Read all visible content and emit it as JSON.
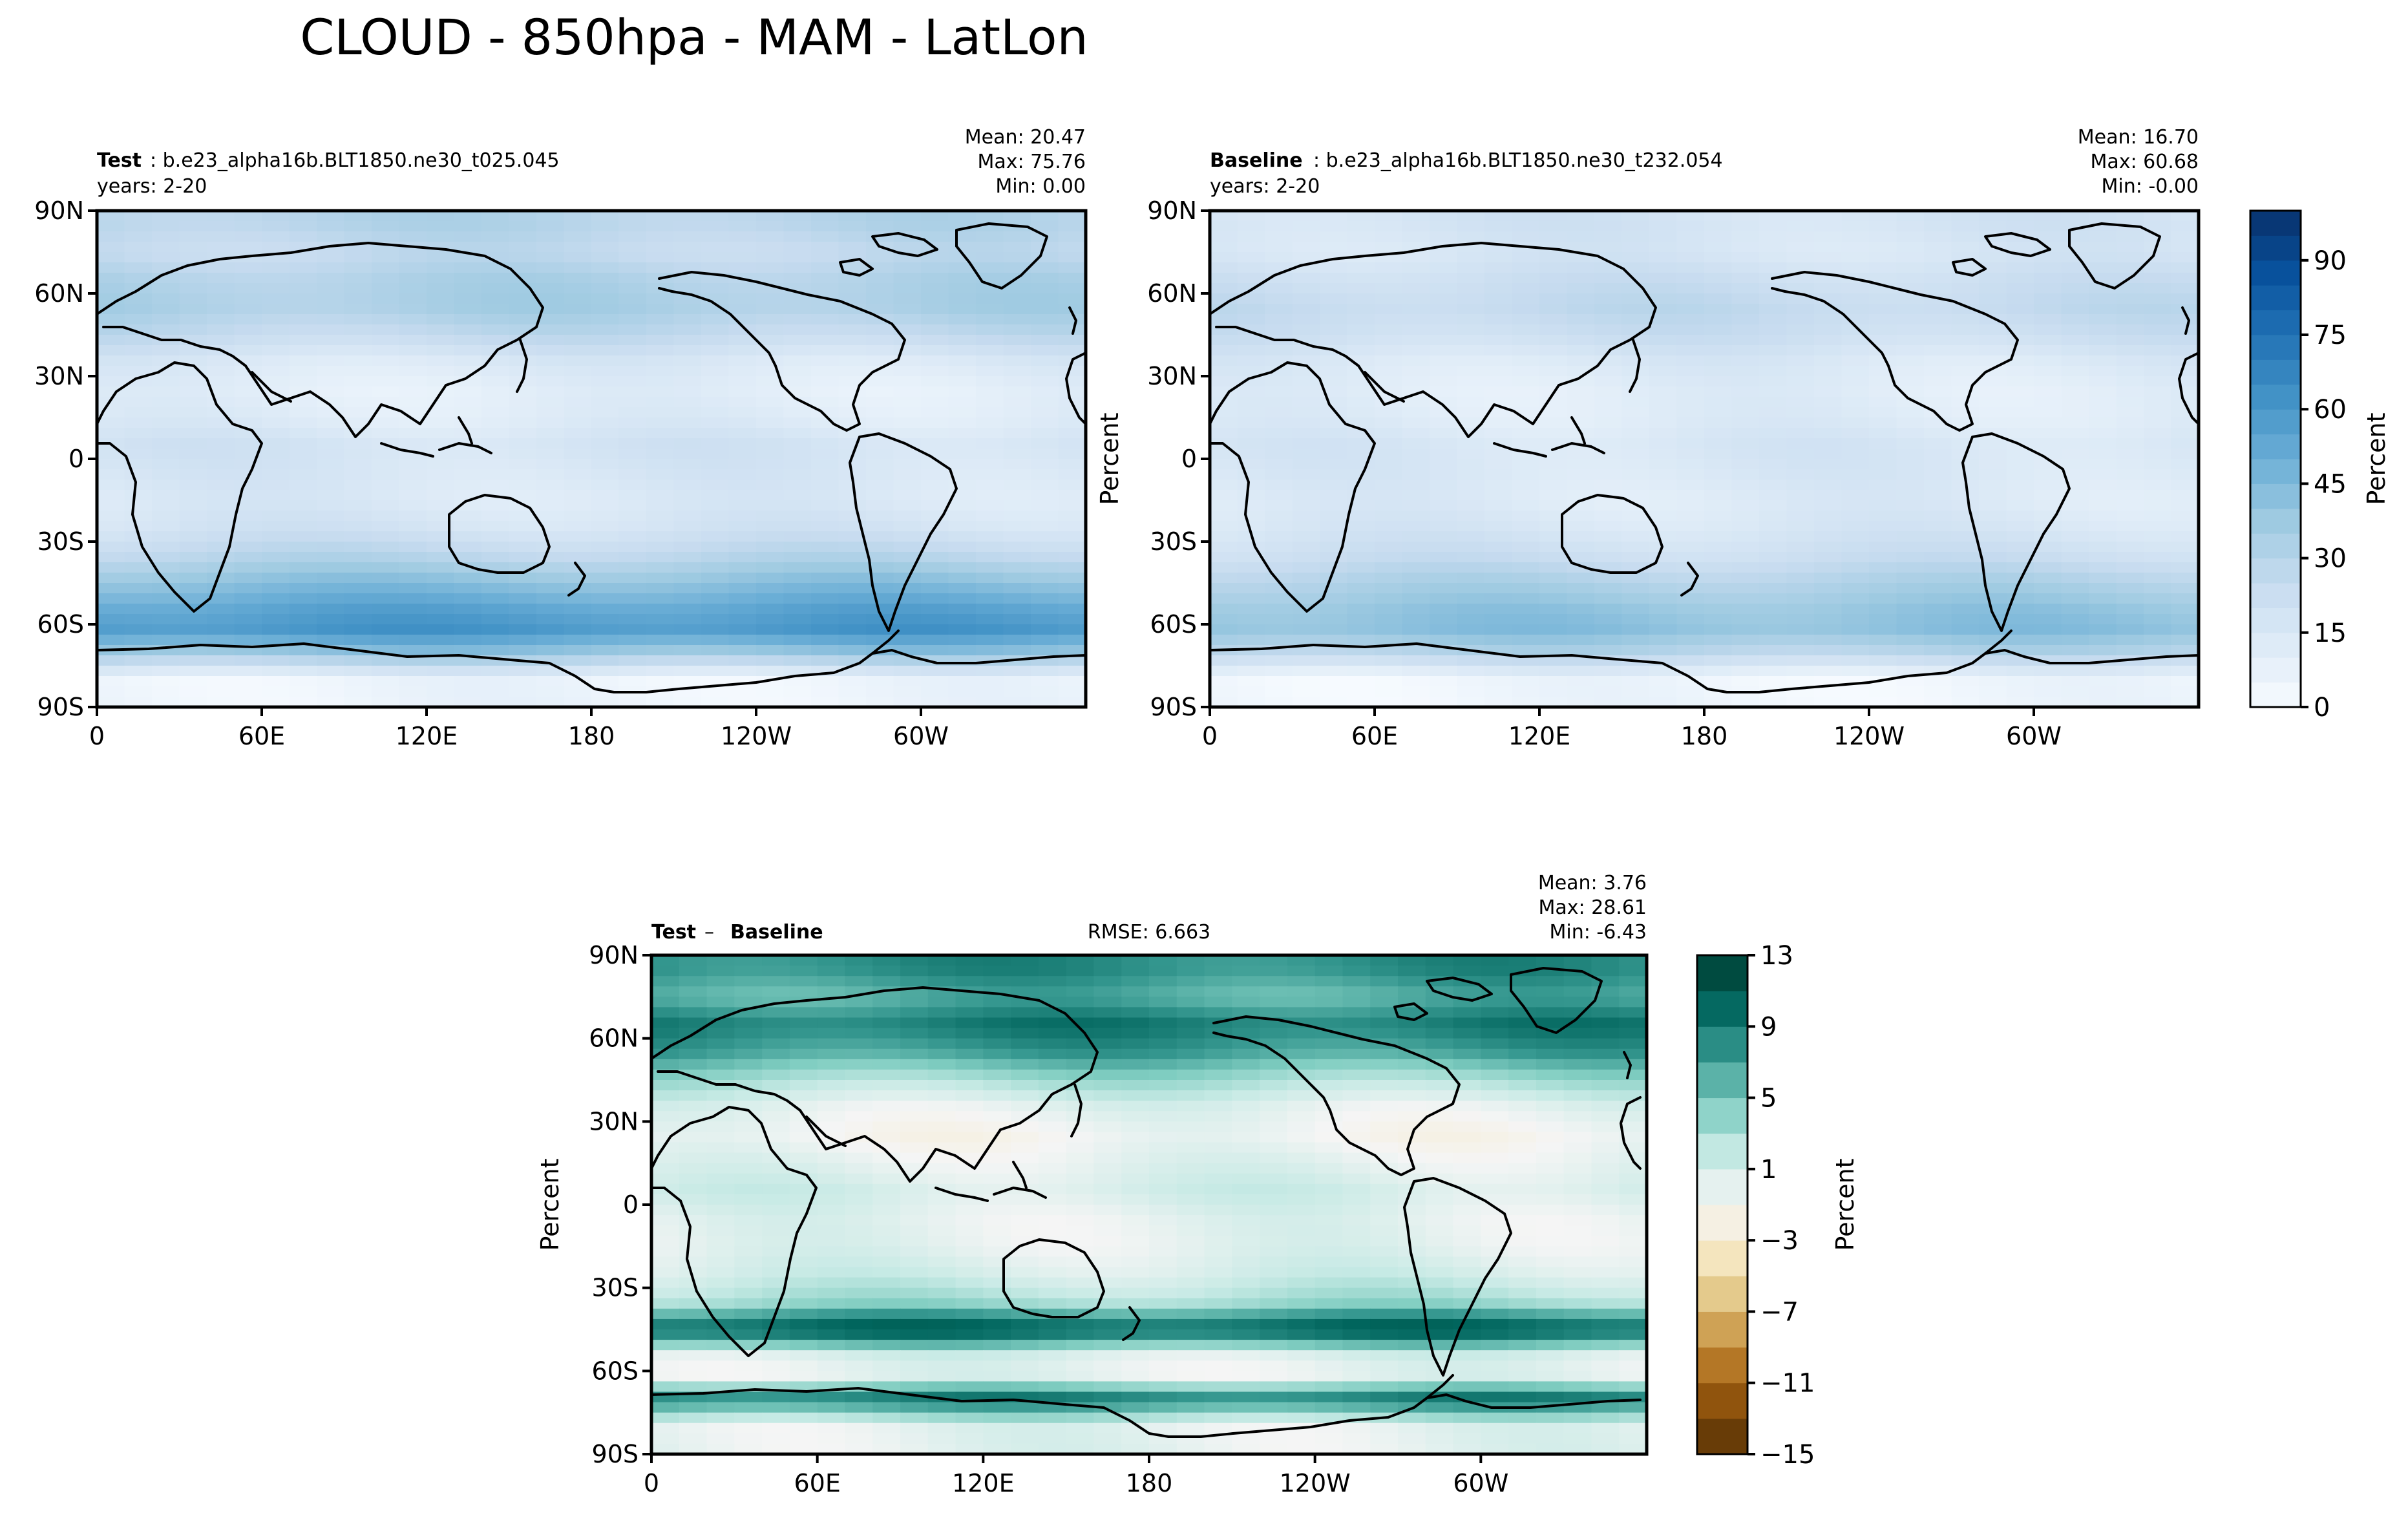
{
  "figure": {
    "title": "CLOUD - 850hpa - MAM - LatLon"
  },
  "chart_data": [
    {
      "type": "heatmap",
      "panel": "test",
      "label_bold": "Test",
      "label_rest": ": b.e23_alpha16b.BLT1850.ne30_t025.045",
      "years": "years: 2-20",
      "stats": {
        "mean": "Mean: 20.47",
        "max": "Max: 75.76",
        "min": "Min:  0.00"
      },
      "ylabel": "",
      "xticks": [
        "0",
        "60E",
        "120E",
        "180",
        "120W",
        "60W"
      ],
      "yticks": [
        "90N",
        "60N",
        "30N",
        "0",
        "30S",
        "60S",
        "90S"
      ],
      "xlim": [
        0,
        360
      ],
      "ylim": [
        -90,
        90
      ],
      "colormap": "Blues",
      "value_range": [
        0,
        100
      ],
      "zonal_profile": [
        {
          "lat": 85,
          "value": 30
        },
        {
          "lat": 75,
          "value": 25
        },
        {
          "lat": 65,
          "value": 32
        },
        {
          "lat": 55,
          "value": 34
        },
        {
          "lat": 45,
          "value": 26
        },
        {
          "lat": 35,
          "value": 14
        },
        {
          "lat": 25,
          "value": 10
        },
        {
          "lat": 15,
          "value": 12
        },
        {
          "lat": 5,
          "value": 18
        },
        {
          "lat": -5,
          "value": 16
        },
        {
          "lat": -15,
          "value": 14
        },
        {
          "lat": -25,
          "value": 18
        },
        {
          "lat": -35,
          "value": 28
        },
        {
          "lat": -45,
          "value": 42
        },
        {
          "lat": -55,
          "value": 55
        },
        {
          "lat": -62,
          "value": 60
        },
        {
          "lat": -70,
          "value": 40
        },
        {
          "lat": -80,
          "value": 5
        }
      ]
    },
    {
      "type": "heatmap",
      "panel": "baseline",
      "label_bold": "Baseline",
      "label_rest": ": b.e23_alpha16b.BLT1850.ne30_t232.054",
      "years": "years: 2-20",
      "stats": {
        "mean": "Mean: 16.70",
        "max": "Max: 60.68",
        "min": "Min: -0.00"
      },
      "ylabel": "Percent",
      "xticks": [
        "0",
        "60E",
        "120E",
        "180",
        "120W",
        "60W"
      ],
      "yticks": [
        "90N",
        "60N",
        "30N",
        "0",
        "30S",
        "60S",
        "90S"
      ],
      "xlim": [
        0,
        360
      ],
      "ylim": [
        -90,
        90
      ],
      "colormap": "Blues",
      "value_range": [
        0,
        100
      ],
      "zonal_profile": [
        {
          "lat": 85,
          "value": 18
        },
        {
          "lat": 75,
          "value": 16
        },
        {
          "lat": 65,
          "value": 22
        },
        {
          "lat": 55,
          "value": 26
        },
        {
          "lat": 45,
          "value": 22
        },
        {
          "lat": 35,
          "value": 14
        },
        {
          "lat": 25,
          "value": 11
        },
        {
          "lat": 15,
          "value": 12
        },
        {
          "lat": 5,
          "value": 16
        },
        {
          "lat": -5,
          "value": 15
        },
        {
          "lat": -15,
          "value": 13
        },
        {
          "lat": -25,
          "value": 16
        },
        {
          "lat": -35,
          "value": 22
        },
        {
          "lat": -45,
          "value": 32
        },
        {
          "lat": -55,
          "value": 40
        },
        {
          "lat": -62,
          "value": 42
        },
        {
          "lat": -70,
          "value": 30
        },
        {
          "lat": -80,
          "value": 4
        }
      ],
      "colorbar": {
        "label": "Percent",
        "ticks": [
          "0",
          "15",
          "30",
          "45",
          "60",
          "75",
          "90"
        ],
        "tick_values": [
          0,
          15,
          30,
          45,
          60,
          75,
          90
        ],
        "range": [
          0,
          100
        ],
        "levels": 20
      }
    },
    {
      "type": "heatmap",
      "panel": "diff",
      "label_bold": "Test",
      "label_op": " – ",
      "label_bold2": "Baseline",
      "rmse": "RMSE: 6.663",
      "stats": {
        "mean": "Mean:  3.76",
        "max": "Max: 28.61",
        "min": "Min: -6.43"
      },
      "ylabel": "Percent",
      "xticks": [
        "0",
        "60E",
        "120E",
        "180",
        "120W",
        "60W"
      ],
      "yticks": [
        "90N",
        "60N",
        "30N",
        "0",
        "30S",
        "60S",
        "90S"
      ],
      "xlim": [
        0,
        360
      ],
      "ylim": [
        -90,
        90
      ],
      "colormap": "BrBG",
      "value_range": [
        -15,
        13
      ],
      "zonal_profile": [
        {
          "lat": 85,
          "value": 8
        },
        {
          "lat": 75,
          "value": 6
        },
        {
          "lat": 65,
          "value": 9
        },
        {
          "lat": 55,
          "value": 7
        },
        {
          "lat": 45,
          "value": 3
        },
        {
          "lat": 35,
          "value": 0
        },
        {
          "lat": 25,
          "value": -1
        },
        {
          "lat": 15,
          "value": 0
        },
        {
          "lat": 5,
          "value": 1
        },
        {
          "lat": -5,
          "value": 0
        },
        {
          "lat": -15,
          "value": 0
        },
        {
          "lat": -25,
          "value": 1
        },
        {
          "lat": -35,
          "value": 3
        },
        {
          "lat": -45,
          "value": 11
        },
        {
          "lat": -55,
          "value": 0
        },
        {
          "lat": -62,
          "value": 0
        },
        {
          "lat": -70,
          "value": 9
        },
        {
          "lat": -80,
          "value": 0
        }
      ],
      "colorbar": {
        "label": "Percent",
        "ticks": [
          "13",
          "9",
          "5",
          "1",
          "−3",
          "−7",
          "−11",
          "−15"
        ],
        "tick_values": [
          13,
          9,
          5,
          1,
          -3,
          -7,
          -11,
          -15
        ],
        "range": [
          -15,
          13
        ],
        "levels": 14
      }
    }
  ],
  "colors": {
    "blues": [
      "#f7fbff",
      "#deebf7",
      "#c6dbef",
      "#9ecae1",
      "#6baed6",
      "#4292c6",
      "#2171b5",
      "#08519c",
      "#08306b"
    ],
    "brbg": [
      "#543005",
      "#8c510a",
      "#bf812d",
      "#dfc27d",
      "#f6e8c3",
      "#f5f5f5",
      "#c7eae5",
      "#80cdc1",
      "#35978f",
      "#01665e",
      "#003c30"
    ]
  }
}
